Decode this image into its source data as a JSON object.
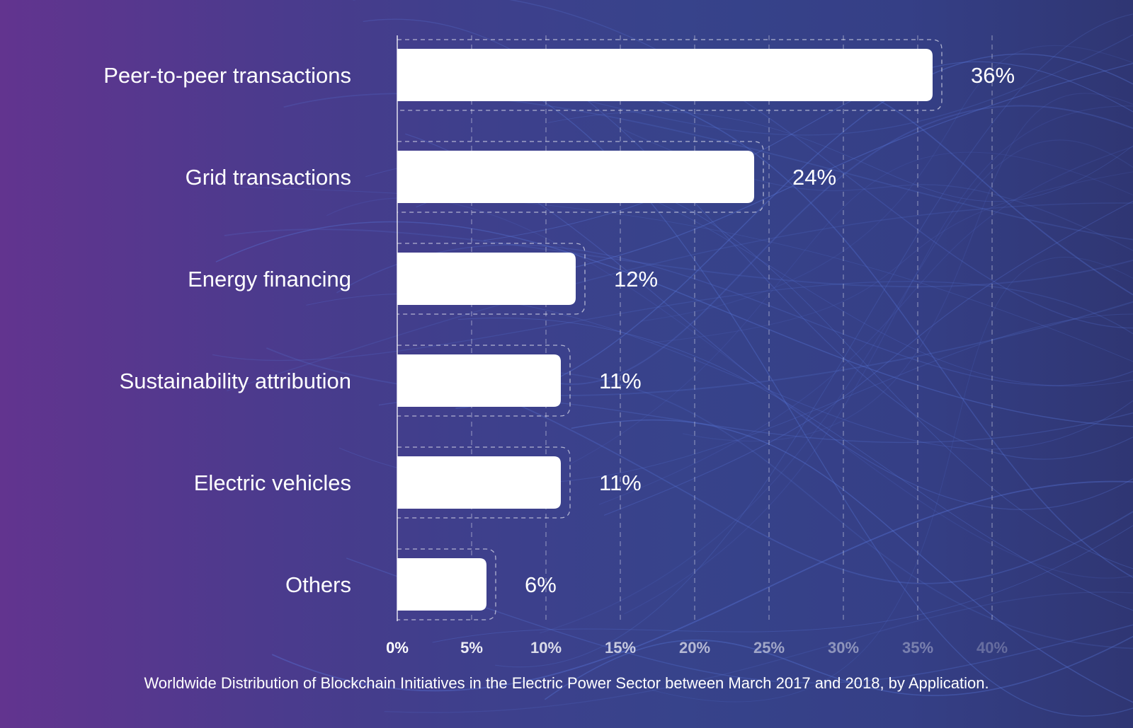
{
  "chart_data": {
    "type": "bar",
    "orientation": "horizontal",
    "categories": [
      "Peer-to-peer transactions",
      "Grid transactions",
      "Energy financing",
      "Sustainability attribution",
      "Electric vehicles",
      "Others"
    ],
    "values": [
      36,
      24,
      12,
      11,
      11,
      6
    ],
    "value_labels": [
      "36%",
      "24%",
      "12%",
      "11%",
      "11%",
      "6%"
    ],
    "x_ticks": [
      "0%",
      "5%",
      "10%",
      "15%",
      "20%",
      "25%",
      "30%",
      "35%",
      "40%"
    ],
    "xlim": [
      0,
      40
    ],
    "grid": true,
    "caption": "Worldwide Distribution of Blockchain Initiatives in the Electric Power Sector between March 2017 and 2018, by Application.",
    "colors": {
      "bar": "#ffffff",
      "grid": "#ffffff",
      "background_left": "#62348f",
      "background_right": "#2f3673"
    }
  }
}
